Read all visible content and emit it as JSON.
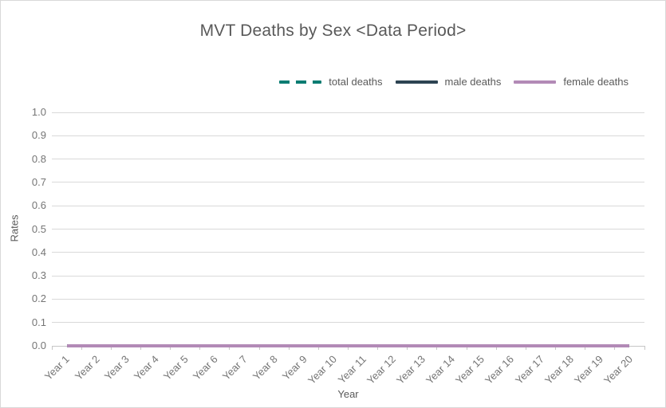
{
  "chart_data": {
    "type": "line",
    "title": "MVT Deaths by Sex <Data Period>",
    "xlabel": "Year",
    "ylabel": "Rates",
    "categories": [
      "Year 1",
      "Year 2",
      "Year 3",
      "Year 4",
      "Year 5",
      "Year 6",
      "Year 7",
      "Year 8",
      "Year 9",
      "Year 10",
      "Year 11",
      "Year 12",
      "Year 13",
      "Year 14",
      "Year 15",
      "Year 16",
      "Year 17",
      "Year 18",
      "Year 19",
      "Year 20"
    ],
    "series": [
      {
        "name": "total deaths",
        "color": "#0a7c72",
        "line_style": "dashed",
        "values": [
          0,
          0,
          0,
          0,
          0,
          0,
          0,
          0,
          0,
          0,
          0,
          0,
          0,
          0,
          0,
          0,
          0,
          0,
          0,
          0
        ]
      },
      {
        "name": "male deaths",
        "color": "#2d4452",
        "line_style": "solid",
        "values": [
          0,
          0,
          0,
          0,
          0,
          0,
          0,
          0,
          0,
          0,
          0,
          0,
          0,
          0,
          0,
          0,
          0,
          0,
          0,
          0
        ]
      },
      {
        "name": "female deaths",
        "color": "#b28ab6",
        "line_style": "solid",
        "values": [
          0,
          0,
          0,
          0,
          0,
          0,
          0,
          0,
          0,
          0,
          0,
          0,
          0,
          0,
          0,
          0,
          0,
          0,
          0,
          0
        ]
      }
    ],
    "ylim": [
      0,
      1
    ],
    "yticks": [
      "0.0",
      "0.1",
      "0.2",
      "0.3",
      "0.4",
      "0.5",
      "0.6",
      "0.7",
      "0.8",
      "0.9",
      "1.0"
    ],
    "grid": true,
    "legend_position": "top-right"
  },
  "colors": {
    "grid": "#d9d9d9",
    "axis": "#c6c6c6",
    "title_text": "#595959",
    "tick_text": "#757575",
    "background": "#ffffff",
    "card_border": "#d9d9d9"
  }
}
